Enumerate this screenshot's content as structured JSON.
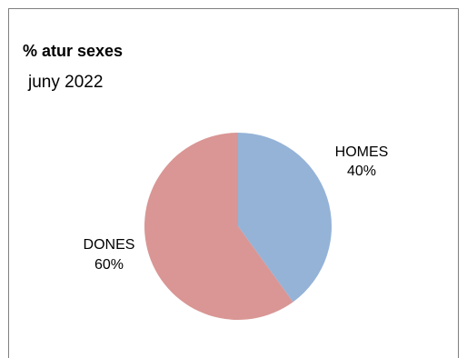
{
  "chart_data": {
    "type": "pie",
    "title": "% atur sexes",
    "subtitle": "juny 2022",
    "categories": [
      "HOMES",
      "DONES"
    ],
    "values": [
      40,
      60
    ],
    "value_labels": [
      "40%",
      "60%"
    ],
    "colors": [
      "#95b3d7",
      "#d99694"
    ],
    "legend": "none",
    "start_angle_deg": 0,
    "direction": "clockwise"
  }
}
